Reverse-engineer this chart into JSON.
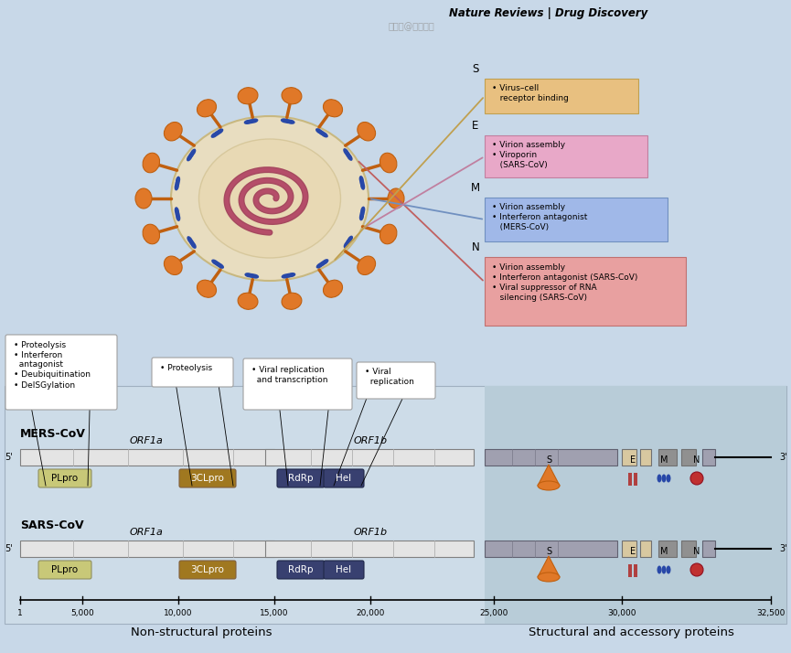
{
  "bg_color": "#c8d8e8",
  "title_top_left": "Non-structural proteins",
  "title_top_right": "Structural and accessory proteins",
  "axis_tick_labels": [
    "1",
    "5,000",
    "10,000",
    "15,000",
    "20,000",
    "25,000",
    "30,000",
    "32,500"
  ],
  "sars_label": "SARS-CoV",
  "mers_label": "MERS-CoV",
  "orf1a_label": "ORF1a",
  "orf1b_label": "ORF1b",
  "plpro_color": "#c8c878",
  "clpro_color": "#a07820",
  "rdrp_color": "#384070",
  "hel_color": "#384070",
  "box_N_color": "#e8a0a0",
  "box_M_color": "#a0b8e8",
  "box_E_color": "#e8a8c8",
  "box_S_color": "#e8c080",
  "spike_color": "#e07828",
  "footer_text": "Nature Reviews | Drug Discovery"
}
